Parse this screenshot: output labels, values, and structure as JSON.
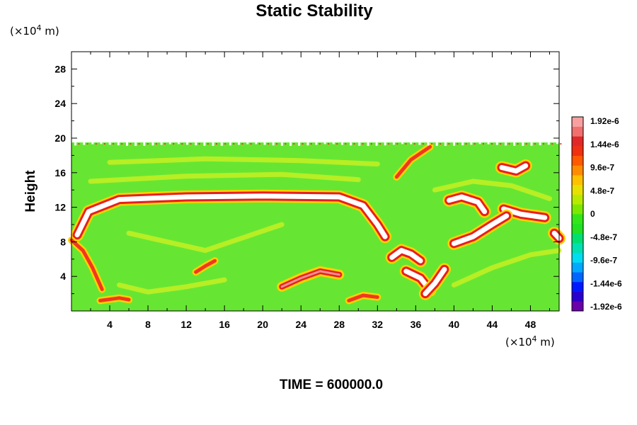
{
  "chart_data": {
    "type": "heatmap",
    "title": "Static Stability",
    "ylabel": "Height",
    "xlabel": "",
    "x_unit": {
      "prefix": "(×10",
      "exp": "4",
      "suffix": " m)"
    },
    "y_unit": {
      "prefix": "(×10",
      "exp": "4",
      "suffix": " m)"
    },
    "xlim": [
      0,
      51
    ],
    "ylim": [
      0,
      30
    ],
    "x_ticks": [
      4,
      8,
      12,
      16,
      20,
      24,
      28,
      32,
      36,
      40,
      44,
      48
    ],
    "y_ticks": [
      4,
      8,
      12,
      16,
      20,
      24,
      28
    ],
    "data_top_height": 19.5,
    "colorbar": {
      "labels": [
        "1.92e-6",
        "1.44e-6",
        "9.6e-7",
        "4.8e-7",
        "0",
        "-4.8e-7",
        "-9.6e-7",
        "-1.44e-6",
        "-1.92e-6"
      ],
      "range": [
        -1.92e-06,
        1.92e-06
      ],
      "colors": [
        "#6a00aa",
        "#2a00cc",
        "#0018ff",
        "#0066ff",
        "#00a8ff",
        "#00dcf0",
        "#00e0b0",
        "#00e070",
        "#22e022",
        "#33e61a",
        "#7ce800",
        "#b8ea00",
        "#e8e000",
        "#ffc000",
        "#ff8c00",
        "#ff5a00",
        "#f03010",
        "#e02828",
        "#f07070",
        "#f8a0a0"
      ]
    },
    "features": [
      {
        "name": "main-band",
        "kind": "loop",
        "points": [
          [
            0.6,
            8.8
          ],
          [
            1.8,
            11.5
          ],
          [
            5,
            12.9
          ],
          [
            12,
            13.2
          ],
          [
            20,
            13.3
          ],
          [
            28,
            13.2
          ],
          [
            30.5,
            12.2
          ],
          [
            32,
            10
          ],
          [
            32.8,
            8.6
          ]
        ]
      },
      {
        "name": "upper-left-descent",
        "kind": "stroke",
        "points": [
          [
            0,
            8.2
          ],
          [
            1.2,
            7
          ],
          [
            2.2,
            5
          ],
          [
            3.2,
            2.5
          ]
        ]
      },
      {
        "name": "lower-filament-24",
        "kind": "blob",
        "points": [
          [
            22,
            2.8
          ],
          [
            24,
            3.8
          ],
          [
            26,
            4.6
          ],
          [
            28,
            4.2
          ]
        ]
      },
      {
        "name": "lower-filament-30",
        "kind": "stroke",
        "points": [
          [
            29,
            1.2
          ],
          [
            30.5,
            1.8
          ],
          [
            32,
            1.6
          ]
        ]
      },
      {
        "name": "left-low-filament",
        "kind": "stroke",
        "points": [
          [
            3,
            1.2
          ],
          [
            5,
            1.5
          ],
          [
            6,
            1.3
          ]
        ]
      },
      {
        "name": "mid-filament-14",
        "kind": "stroke",
        "points": [
          [
            13,
            4.5
          ],
          [
            14,
            5.2
          ],
          [
            15,
            5.8
          ]
        ]
      },
      {
        "name": "right-blob-40",
        "kind": "loop",
        "points": [
          [
            39.5,
            12.8
          ],
          [
            40.8,
            13.2
          ],
          [
            42.5,
            12.6
          ],
          [
            43.2,
            11.5
          ]
        ]
      },
      {
        "name": "right-blob-46",
        "kind": "loop",
        "points": [
          [
            45.2,
            11.8
          ],
          [
            47,
            11.2
          ],
          [
            49.5,
            10.8
          ]
        ]
      },
      {
        "name": "right-lower-streak",
        "kind": "loop",
        "points": [
          [
            40,
            7.8
          ],
          [
            42,
            8.6
          ],
          [
            44,
            10
          ],
          [
            45.5,
            11
          ]
        ]
      },
      {
        "name": "right-tail-50",
        "kind": "loop",
        "points": [
          [
            50.5,
            9
          ],
          [
            51,
            8.4
          ]
        ]
      },
      {
        "name": "top-right-streak",
        "kind": "stroke",
        "points": [
          [
            34,
            15.5
          ],
          [
            35.5,
            17.5
          ],
          [
            37.5,
            19
          ]
        ]
      },
      {
        "name": "right-blob-45",
        "kind": "loop",
        "points": [
          [
            45,
            16.6
          ],
          [
            46.5,
            16.2
          ],
          [
            47.5,
            16.8
          ]
        ]
      },
      {
        "name": "mid-right-swirl",
        "kind": "loop",
        "points": [
          [
            33.5,
            6.2
          ],
          [
            34.5,
            7
          ],
          [
            35.5,
            6.6
          ],
          [
            36.5,
            5.8
          ]
        ]
      },
      {
        "name": "lower-right-swirl",
        "kind": "loop",
        "points": [
          [
            35,
            4.6
          ],
          [
            36.5,
            3.8
          ],
          [
            37.5,
            2.4
          ]
        ]
      },
      {
        "name": "lower-right-39",
        "kind": "loop",
        "points": [
          [
            37,
            2
          ],
          [
            38,
            3.2
          ],
          [
            39,
            4.8
          ]
        ]
      },
      {
        "name": "upper-band-yellow",
        "kind": "halo",
        "points": [
          [
            2,
            15
          ],
          [
            12,
            15.6
          ],
          [
            22,
            15.8
          ],
          [
            30,
            15.2
          ]
        ]
      },
      {
        "name": "upper-band-yellow-2",
        "kind": "halo",
        "points": [
          [
            4,
            17.2
          ],
          [
            14,
            17.6
          ],
          [
            24,
            17.4
          ],
          [
            32,
            17
          ]
        ]
      },
      {
        "name": "mid-swirl-left",
        "kind": "halo",
        "points": [
          [
            6,
            9
          ],
          [
            10,
            8
          ],
          [
            14,
            7
          ],
          [
            18,
            8.5
          ],
          [
            22,
            10
          ]
        ]
      },
      {
        "name": "low-swirl",
        "kind": "halo",
        "points": [
          [
            5,
            3
          ],
          [
            8,
            2.2
          ],
          [
            12,
            2.8
          ],
          [
            16,
            3.6
          ]
        ]
      },
      {
        "name": "right-halo",
        "kind": "halo",
        "points": [
          [
            40,
            3
          ],
          [
            44,
            5
          ],
          [
            48,
            6.5
          ],
          [
            51,
            7
          ]
        ]
      },
      {
        "name": "right-halo-2",
        "kind": "halo",
        "points": [
          [
            38,
            14
          ],
          [
            42,
            15
          ],
          [
            46,
            14.5
          ],
          [
            50,
            13
          ]
        ]
      }
    ]
  },
  "footer": {
    "time_label": "TIME = 600000.0"
  }
}
